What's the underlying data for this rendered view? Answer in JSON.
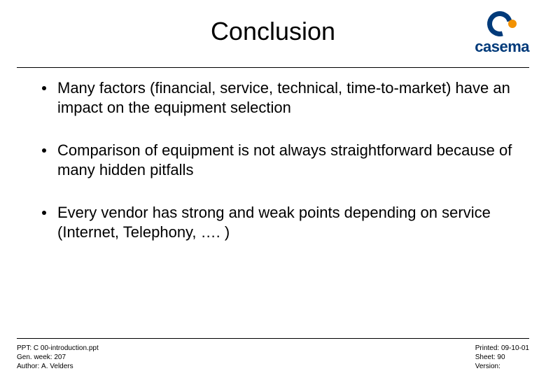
{
  "title": "Conclusion",
  "logo": {
    "brand": "casema",
    "primary_color": "#003a7a",
    "accent_color": "#f39200"
  },
  "bullets": [
    "Many factors (financial, service, technical, time-to-market) have an impact on the equipment selection",
    "Comparison of equipment is not always straightforward because of many hidden pitfalls",
    "Every vendor has strong and weak points depending on service (Internet, Telephony, …. )"
  ],
  "footer": {
    "left": {
      "ppt_label": "PPT: ",
      "ppt_value": "C 00-introduction.ppt",
      "gen_label": "Gen. week: ",
      "gen_value": "207",
      "author_label": "Author: ",
      "author_value": "A. Velders"
    },
    "right": {
      "printed_label": "Printed: ",
      "printed_value": "09-10-01",
      "sheet_label": "Sheet: ",
      "sheet_value": "90",
      "version_label": "Version:",
      "version_value": ""
    }
  },
  "style": {
    "title_fontsize": 36,
    "body_fontsize": 22,
    "footer_fontsize": 10,
    "text_color": "#000000",
    "background_color": "#ffffff",
    "rule_color": "#000000"
  }
}
